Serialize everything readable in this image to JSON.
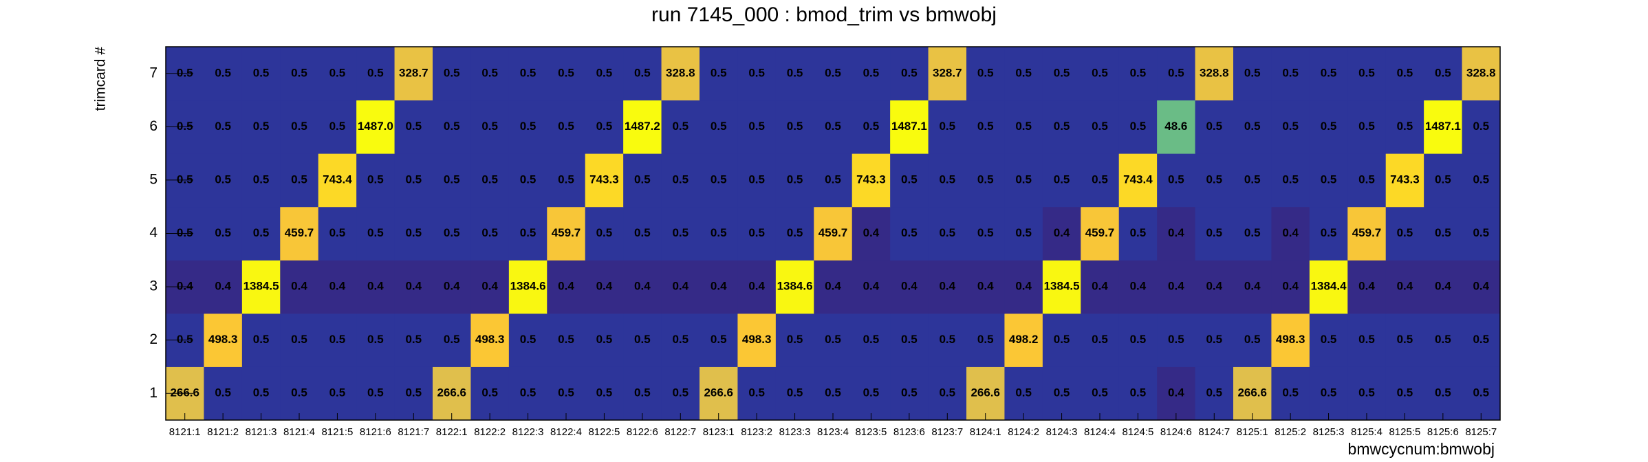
{
  "chart_data": {
    "type": "heatmap",
    "title": "run 7145_000 : bmod_trim vs bmwobj",
    "xlabel": "bmwcycnum:bmwobj",
    "ylabel": "trimcard #",
    "log_z": true,
    "palette": [
      "#352a87",
      "#0f5cdd",
      "#1481d4",
      "#06a4ca",
      "#2eb7a4",
      "#87bf77",
      "#d1bb59",
      "#fec832",
      "#f9fb0e"
    ],
    "categories": [
      "8121:1",
      "8121:2",
      "8121:3",
      "8121:4",
      "8121:5",
      "8121:6",
      "8121:7",
      "8122:1",
      "8122:2",
      "8122:3",
      "8122:4",
      "8122:5",
      "8122:6",
      "8122:7",
      "8123:1",
      "8123:2",
      "8123:3",
      "8123:4",
      "8123:5",
      "8123:6",
      "8123:7",
      "8124:1",
      "8124:2",
      "8124:3",
      "8124:4",
      "8124:5",
      "8124:6",
      "8124:7",
      "8125:1",
      "8125:2",
      "8125:3",
      "8125:4",
      "8125:5",
      "8125:6",
      "8125:7"
    ],
    "y_categories": [
      "1",
      "2",
      "3",
      "4",
      "5",
      "6",
      "7"
    ],
    "values": [
      [
        266.6,
        0.5,
        0.5,
        0.5,
        0.5,
        0.5,
        0.5,
        266.6,
        0.5,
        0.5,
        0.5,
        0.5,
        0.5,
        0.5,
        266.6,
        0.5,
        0.5,
        0.5,
        0.5,
        0.5,
        0.5,
        266.6,
        0.5,
        0.5,
        0.5,
        0.5,
        0.4,
        0.5,
        266.6,
        0.5,
        0.5,
        0.5,
        0.5,
        0.5,
        0.5
      ],
      [
        0.5,
        498.3,
        0.5,
        0.5,
        0.5,
        0.5,
        0.5,
        0.5,
        498.3,
        0.5,
        0.5,
        0.5,
        0.5,
        0.5,
        0.5,
        498.3,
        0.5,
        0.5,
        0.5,
        0.5,
        0.5,
        0.5,
        498.2,
        0.5,
        0.5,
        0.5,
        0.5,
        0.5,
        0.5,
        498.3,
        0.5,
        0.5,
        0.5,
        0.5,
        0.5
      ],
      [
        0.4,
        0.4,
        1384.5,
        0.4,
        0.4,
        0.4,
        0.4,
        0.4,
        0.4,
        1384.6,
        0.4,
        0.4,
        0.4,
        0.4,
        0.4,
        0.4,
        1384.6,
        0.4,
        0.4,
        0.4,
        0.4,
        0.4,
        0.4,
        1384.5,
        0.4,
        0.4,
        0.4,
        0.4,
        0.4,
        0.4,
        1384.4,
        0.4,
        0.4,
        0.4,
        0.4
      ],
      [
        0.5,
        0.5,
        0.5,
        459.7,
        0.5,
        0.5,
        0.5,
        0.5,
        0.5,
        0.5,
        459.7,
        0.5,
        0.5,
        0.5,
        0.5,
        0.5,
        0.5,
        459.7,
        0.4,
        0.5,
        0.5,
        0.5,
        0.5,
        0.4,
        459.7,
        0.5,
        0.4,
        0.5,
        0.5,
        0.4,
        0.5,
        459.7,
        0.5,
        0.5,
        0.5
      ],
      [
        0.5,
        0.5,
        0.5,
        0.5,
        743.4,
        0.5,
        0.5,
        0.5,
        0.5,
        0.5,
        0.5,
        743.3,
        0.5,
        0.5,
        0.5,
        0.5,
        0.5,
        0.5,
        743.3,
        0.5,
        0.5,
        0.5,
        0.5,
        0.5,
        0.5,
        743.4,
        0.5,
        0.5,
        0.5,
        0.5,
        0.5,
        0.5,
        743.3,
        0.5,
        0.5
      ],
      [
        0.5,
        0.5,
        0.5,
        0.5,
        0.5,
        1487,
        0.5,
        0.5,
        0.5,
        0.5,
        0.5,
        0.5,
        1487.2,
        0.5,
        0.5,
        0.5,
        0.5,
        0.5,
        0.5,
        1487.1,
        0.5,
        0.5,
        0.5,
        0.5,
        0.5,
        0.5,
        48.6,
        0.5,
        0.5,
        0.5,
        0.5,
        0.5,
        0.5,
        1487.1,
        0.5
      ],
      [
        0.5,
        0.5,
        0.5,
        0.5,
        0.5,
        0.5,
        328.7,
        0.5,
        0.5,
        0.5,
        0.5,
        0.5,
        0.5,
        328.8,
        0.5,
        0.5,
        0.5,
        0.5,
        0.5,
        0.5,
        328.7,
        0.5,
        0.5,
        0.5,
        0.5,
        0.5,
        0.5,
        328.8,
        0.5,
        0.5,
        0.5,
        0.5,
        0.5,
        0.5,
        328.8
      ]
    ],
    "value_labels": [
      [
        "266.6",
        "0.5",
        "0.5",
        "0.5",
        "0.5",
        "0.5",
        "0.5",
        "266.6",
        "0.5",
        "0.5",
        "0.5",
        "0.5",
        "0.5",
        "0.5",
        "266.6",
        "0.5",
        "0.5",
        "0.5",
        "0.5",
        "0.5",
        "0.5",
        "266.6",
        "0.5",
        "0.5",
        "0.5",
        "0.5",
        "0.4",
        "0.5",
        "266.6",
        "0.5",
        "0.5",
        "0.5",
        "0.5",
        "0.5",
        "0.5"
      ],
      [
        "0.5",
        "498.3",
        "0.5",
        "0.5",
        "0.5",
        "0.5",
        "0.5",
        "0.5",
        "498.3",
        "0.5",
        "0.5",
        "0.5",
        "0.5",
        "0.5",
        "0.5",
        "498.3",
        "0.5",
        "0.5",
        "0.5",
        "0.5",
        "0.5",
        "0.5",
        "498.2",
        "0.5",
        "0.5",
        "0.5",
        "0.5",
        "0.5",
        "0.5",
        "498.3",
        "0.5",
        "0.5",
        "0.5",
        "0.5",
        "0.5"
      ],
      [
        "0.4",
        "0.4",
        "1384.5",
        "0.4",
        "0.4",
        "0.4",
        "0.4",
        "0.4",
        "0.4",
        "1384.6",
        "0.4",
        "0.4",
        "0.4",
        "0.4",
        "0.4",
        "0.4",
        "1384.6",
        "0.4",
        "0.4",
        "0.4",
        "0.4",
        "0.4",
        "0.4",
        "1384.5",
        "0.4",
        "0.4",
        "0.4",
        "0.4",
        "0.4",
        "0.4",
        "1384.4",
        "0.4",
        "0.4",
        "0.4",
        "0.4"
      ],
      [
        "0.5",
        "0.5",
        "0.5",
        "459.7",
        "0.5",
        "0.5",
        "0.5",
        "0.5",
        "0.5",
        "0.5",
        "459.7",
        "0.5",
        "0.5",
        "0.5",
        "0.5",
        "0.5",
        "0.5",
        "459.7",
        "0.4",
        "0.5",
        "0.5",
        "0.5",
        "0.5",
        "0.4",
        "459.7",
        "0.5",
        "0.4",
        "0.5",
        "0.5",
        "0.4",
        "0.5",
        "459.7",
        "0.5",
        "0.5",
        "0.5"
      ],
      [
        "0.5",
        "0.5",
        "0.5",
        "0.5",
        "743.4",
        "0.5",
        "0.5",
        "0.5",
        "0.5",
        "0.5",
        "0.5",
        "743.3",
        "0.5",
        "0.5",
        "0.5",
        "0.5",
        "0.5",
        "0.5",
        "743.3",
        "0.5",
        "0.5",
        "0.5",
        "0.5",
        "0.5",
        "0.5",
        "743.4",
        "0.5",
        "0.5",
        "0.5",
        "0.5",
        "0.5",
        "0.5",
        "743.3",
        "0.5",
        "0.5"
      ],
      [
        "0.5",
        "0.5",
        "0.5",
        "0.5",
        "0.5",
        "1487.0",
        "0.5",
        "0.5",
        "0.5",
        "0.5",
        "0.5",
        "0.5",
        "1487.2",
        "0.5",
        "0.5",
        "0.5",
        "0.5",
        "0.5",
        "0.5",
        "1487.1",
        "0.5",
        "0.5",
        "0.5",
        "0.5",
        "0.5",
        "0.5",
        "48.6",
        "0.5",
        "0.5",
        "0.5",
        "0.5",
        "0.5",
        "0.5",
        "1487.1",
        "0.5"
      ],
      [
        "0.5",
        "0.5",
        "0.5",
        "0.5",
        "0.5",
        "0.5",
        "328.7",
        "0.5",
        "0.5",
        "0.5",
        "0.5",
        "0.5",
        "0.5",
        "328.8",
        "0.5",
        "0.5",
        "0.5",
        "0.5",
        "0.5",
        "0.5",
        "328.7",
        "0.5",
        "0.5",
        "0.5",
        "0.5",
        "0.5",
        "0.5",
        "328.8",
        "0.5",
        "0.5",
        "0.5",
        "0.5",
        "0.5",
        "0.5",
        "328.8"
      ]
    ]
  }
}
